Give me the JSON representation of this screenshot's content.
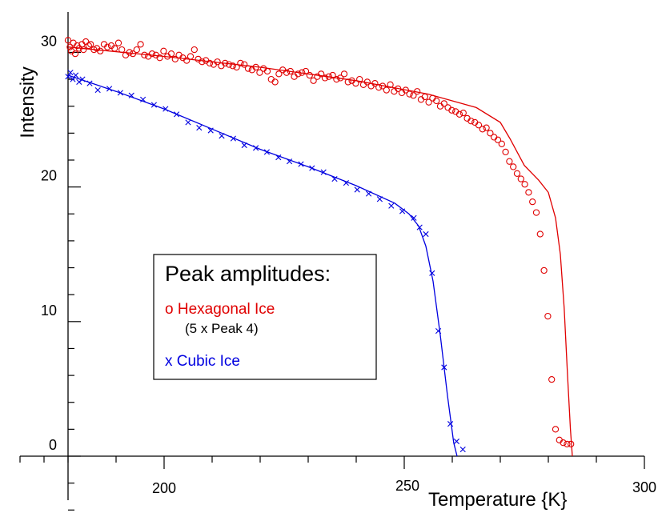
{
  "chart_data": {
    "type": "scatter",
    "title": "",
    "xlabel": "Temperature  {K}",
    "ylabel": "Intensity",
    "xlim": [
      180,
      300
    ],
    "ylim": [
      0,
      33
    ],
    "x_ticks": [
      200,
      250,
      300
    ],
    "y_ticks": [
      0,
      10,
      20,
      30
    ],
    "x_tick_labels": [
      "200",
      "250",
      "300"
    ],
    "y_tick_labels": [
      "0",
      "10",
      "20",
      "30"
    ],
    "grid": false,
    "legend": {
      "placement": "center-left",
      "title": "Peak  amplitudes:",
      "entries": [
        {
          "marker": "o",
          "label": "o  Hexagonal  Ice",
          "sublabel": "(5  x  Peak  4)",
          "color": "#e00000"
        },
        {
          "marker": "x",
          "label": "x  Cubic  Ice",
          "color": "#0000e0"
        }
      ]
    },
    "series": [
      {
        "marker": "circle",
        "color": "#e00000",
        "x": [
          180.0,
          180.4,
          180.7,
          181.1,
          181.5,
          181.9,
          182.3,
          182.9,
          183.2,
          183.7,
          184.3,
          184.7,
          185.4,
          186.0,
          186.7,
          187.5,
          188.2,
          189.0,
          189.7,
          190.5,
          191.2,
          192.0,
          192.8,
          193.5,
          194.3,
          195.1,
          195.9,
          196.7,
          197.5,
          198.3,
          199.1,
          199.9,
          200.7,
          201.5,
          202.3,
          203.1,
          203.9,
          204.7,
          205.5,
          206.3,
          207.1,
          207.9,
          208.7,
          209.5,
          210.3,
          211.1,
          211.9,
          212.7,
          213.5,
          214.3,
          215.1,
          215.9,
          216.7,
          217.5,
          218.3,
          219.1,
          219.9,
          220.7,
          221.5,
          222.3,
          223.1,
          223.9,
          224.7,
          225.5,
          226.3,
          227.1,
          227.9,
          228.7,
          229.5,
          230.3,
          231.1,
          231.9,
          232.7,
          233.5,
          234.3,
          235.1,
          235.9,
          236.7,
          237.5,
          238.3,
          239.1,
          239.9,
          240.7,
          241.5,
          242.3,
          243.1,
          243.9,
          244.7,
          245.5,
          246.3,
          247.1,
          247.9,
          248.7,
          249.5,
          250.3,
          251.1,
          251.9,
          252.7,
          253.5,
          254.3,
          255.1,
          255.9,
          256.7,
          257.5,
          258.3,
          259.1,
          259.9,
          260.7,
          261.5,
          262.3,
          263.1,
          263.9,
          264.7,
          265.5,
          266.3,
          267.1,
          267.9,
          268.7,
          269.5,
          270.3,
          271.1,
          271.9,
          272.7,
          273.5,
          274.3,
          275.1,
          275.9,
          276.7,
          277.5,
          278.3,
          279.1,
          279.9,
          280.7,
          281.5,
          282.3,
          283.1,
          283.9,
          284.7
        ],
        "y": [
          30.9,
          30.4,
          30.1,
          30.7,
          29.9,
          30.5,
          30.3,
          30.6,
          30.2,
          30.8,
          30.5,
          30.6,
          30.2,
          30.3,
          30.1,
          30.6,
          30.4,
          30.5,
          30.3,
          30.7,
          30.2,
          29.8,
          30.0,
          29.9,
          30.2,
          30.6,
          29.8,
          29.7,
          29.9,
          29.8,
          29.6,
          30.1,
          29.7,
          29.9,
          29.5,
          29.8,
          29.6,
          29.4,
          29.7,
          30.2,
          29.5,
          29.3,
          29.4,
          29.2,
          29.1,
          29.3,
          29.0,
          29.2,
          29.1,
          29.0,
          28.9,
          29.2,
          29.1,
          28.8,
          28.7,
          28.9,
          28.5,
          28.8,
          28.6,
          28.0,
          27.8,
          28.4,
          28.7,
          28.5,
          28.6,
          28.2,
          28.4,
          28.5,
          28.6,
          28.3,
          27.9,
          28.2,
          28.4,
          28.1,
          28.2,
          28.3,
          28.0,
          28.1,
          28.4,
          27.8,
          27.9,
          27.7,
          28.0,
          27.6,
          27.8,
          27.5,
          27.7,
          27.4,
          27.5,
          27.2,
          27.6,
          27.1,
          27.3,
          27.0,
          27.2,
          26.9,
          26.8,
          27.1,
          26.5,
          26.7,
          26.3,
          26.6,
          26.4,
          26.0,
          26.2,
          25.9,
          25.7,
          25.6,
          25.4,
          25.5,
          25.1,
          24.9,
          24.8,
          24.6,
          24.3,
          24.4,
          24.0,
          23.7,
          23.5,
          23.2,
          22.6,
          21.9,
          21.5,
          21.0,
          20.6,
          20.2,
          19.6,
          18.9,
          18.1,
          16.5,
          13.8,
          10.4,
          5.7,
          2.0,
          1.2,
          1.0,
          0.9,
          0.9
        ],
        "fit": [
          [
            180,
            30.4
          ],
          [
            200,
            29.7
          ],
          [
            220,
            28.9
          ],
          [
            240,
            27.9
          ],
          [
            255,
            26.9
          ],
          [
            265,
            25.9
          ],
          [
            270,
            24.8
          ],
          [
            272,
            23.6
          ],
          [
            275,
            21.6
          ],
          [
            278,
            20.5
          ],
          [
            280,
            19.6
          ],
          [
            281.5,
            17.7
          ],
          [
            282.5,
            15.0
          ],
          [
            283.3,
            11.0
          ],
          [
            284,
            6.0
          ],
          [
            284.6,
            2.0
          ],
          [
            285.0,
            -0.5
          ]
        ]
      },
      {
        "marker": "x",
        "color": "#0000e0",
        "x": [
          180.0,
          180.5,
          181.0,
          181.6,
          182.3,
          183.0,
          184.5,
          186.2,
          188.6,
          190.9,
          193.2,
          195.6,
          197.9,
          200.3,
          202.6,
          205.0,
          207.3,
          209.7,
          212.0,
          214.4,
          216.7,
          219.1,
          221.4,
          223.8,
          226.1,
          228.5,
          230.8,
          233.2,
          235.5,
          237.9,
          240.2,
          242.6,
          244.9,
          247.3,
          249.6,
          252.0,
          253.2,
          254.5,
          255.8,
          257.1,
          258.3,
          259.6,
          260.9,
          262.2
        ],
        "y": [
          28.2,
          28.5,
          28.0,
          28.3,
          27.8,
          28.0,
          27.7,
          27.2,
          27.3,
          27.0,
          26.8,
          26.5,
          26.1,
          25.8,
          25.4,
          24.8,
          24.4,
          24.2,
          23.8,
          23.6,
          23.1,
          22.9,
          22.6,
          22.2,
          21.9,
          21.7,
          21.4,
          21.1,
          20.6,
          20.3,
          19.8,
          19.5,
          19.1,
          18.6,
          18.2,
          17.7,
          17.0,
          16.5,
          13.6,
          9.3,
          6.6,
          2.4,
          1.1,
          0.5
        ],
        "fit": [
          [
            180,
            28.3
          ],
          [
            190,
            27.1
          ],
          [
            200,
            25.8
          ],
          [
            210,
            24.3
          ],
          [
            220,
            22.8
          ],
          [
            230,
            21.5
          ],
          [
            240,
            20.1
          ],
          [
            248,
            18.8
          ],
          [
            251,
            18.0
          ],
          [
            253,
            17.1
          ],
          [
            254.5,
            15.6
          ],
          [
            256,
            13.0
          ],
          [
            257.5,
            9.0
          ],
          [
            259,
            4.5
          ],
          [
            260.3,
            1.0
          ],
          [
            261.0,
            -0.5
          ]
        ]
      }
    ]
  }
}
